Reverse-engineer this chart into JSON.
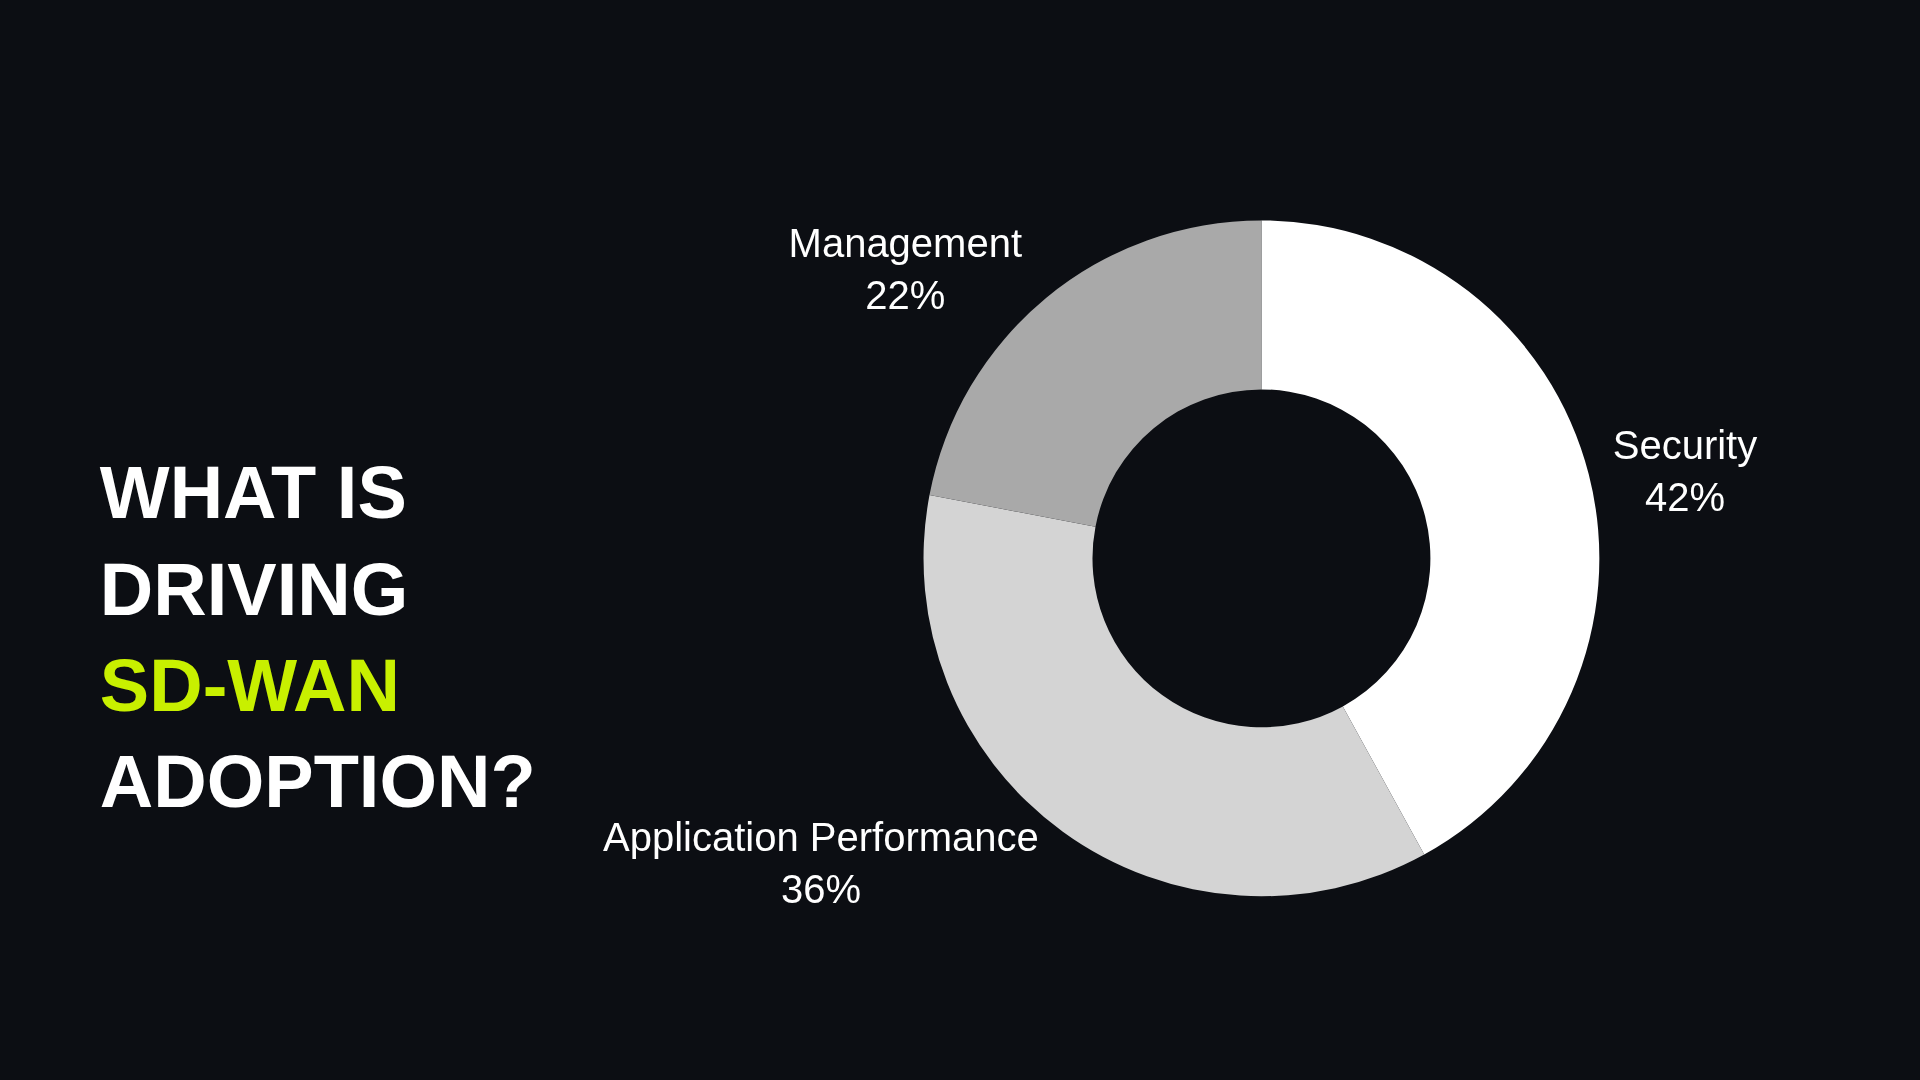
{
  "chart_data": {
    "type": "donut",
    "title": "WHAT IS\nDRIVING\nSD-WAN\nADOPTION?",
    "categories": [
      "Security",
      "Application Performance",
      "Management"
    ],
    "values": [
      42,
      36,
      22
    ],
    "value_labels": [
      "42%",
      "36%",
      "22%"
    ],
    "colors": [
      "#ffffff",
      "#d4d4d4",
      "#a9a9a9"
    ],
    "legend": false
  }
}
